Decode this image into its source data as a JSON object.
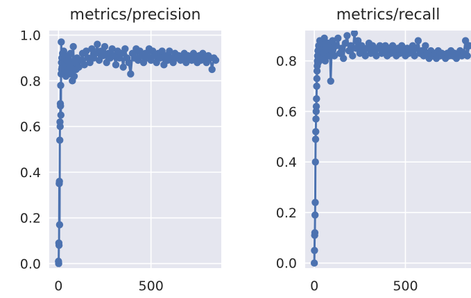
{
  "figure": {
    "background": "#ffffff",
    "plot_background": "#e5e6ef",
    "grid_color": "#ffffff",
    "series_color": "#4c72b0",
    "text_color": "#262626"
  },
  "chart_data": [
    {
      "type": "line",
      "title": "metrics/precision",
      "xlabel": "",
      "ylabel": "",
      "xlim": [
        -50,
        880
      ],
      "ylim": [
        -0.02,
        1.02
      ],
      "xticks": [
        0,
        500
      ],
      "xtick_labels": [
        "0",
        "500"
      ],
      "yticks": [
        0.0,
        0.2,
        0.4,
        0.6,
        0.8,
        1.0
      ],
      "ytick_labels": [
        "0.0",
        "0.2",
        "0.4",
        "0.6",
        "0.8",
        "1.0"
      ],
      "grid": true,
      "markers": true,
      "series": [
        {
          "x": [
            0,
            1,
            2,
            3,
            4,
            5,
            6,
            7,
            8,
            9,
            10,
            11,
            12,
            13,
            14,
            15,
            16,
            17,
            18,
            19,
            20,
            22,
            24,
            26,
            28,
            30,
            35,
            40,
            45,
            50,
            55,
            60,
            65,
            70,
            75,
            80,
            85,
            90,
            95,
            100,
            110,
            120,
            130,
            140,
            150,
            160,
            170,
            180,
            190,
            200,
            210,
            220,
            230,
            240,
            250,
            260,
            270,
            280,
            290,
            300,
            310,
            320,
            330,
            340,
            350,
            360,
            370,
            380,
            390,
            400,
            410,
            420,
            430,
            440,
            450,
            460,
            470,
            480,
            490,
            500,
            510,
            520,
            530,
            540,
            550,
            560,
            570,
            580,
            590,
            600,
            610,
            620,
            630,
            640,
            650,
            660,
            670,
            680,
            690,
            700,
            710,
            720,
            730,
            740,
            750,
            760,
            770,
            780,
            790,
            800,
            810,
            820,
            830,
            840,
            850
          ],
          "y": [
            0.01,
            0.0,
            0.09,
            0.08,
            0.35,
            0.36,
            0.17,
            0.54,
            0.62,
            0.6,
            0.7,
            0.69,
            0.78,
            0.65,
            0.83,
            0.97,
            0.88,
            0.85,
            0.9,
            0.86,
            0.84,
            0.92,
            0.88,
            0.87,
            0.93,
            0.85,
            0.9,
            0.82,
            0.89,
            0.84,
            0.91,
            0.83,
            0.92,
            0.86,
            0.8,
            0.95,
            0.82,
            0.88,
            0.85,
            0.9,
            0.86,
            0.89,
            0.92,
            0.87,
            0.93,
            0.9,
            0.88,
            0.94,
            0.9,
            0.92,
            0.96,
            0.89,
            0.93,
            0.91,
            0.95,
            0.88,
            0.92,
            0.9,
            0.94,
            0.91,
            0.87,
            0.93,
            0.9,
            0.92,
            0.86,
            0.94,
            0.9,
            0.88,
            0.83,
            0.92,
            0.9,
            0.94,
            0.89,
            0.93,
            0.91,
            0.88,
            0.92,
            0.9,
            0.94,
            0.89,
            0.93,
            0.91,
            0.88,
            0.92,
            0.9,
            0.93,
            0.87,
            0.91,
            0.89,
            0.93,
            0.9,
            0.88,
            0.92,
            0.9,
            0.91,
            0.89,
            0.9,
            0.92,
            0.88,
            0.91,
            0.9,
            0.89,
            0.92,
            0.9,
            0.88,
            0.91,
            0.89,
            0.92,
            0.9,
            0.88,
            0.91,
            0.9,
            0.85,
            0.9,
            0.89
          ]
        }
      ]
    },
    {
      "type": "line",
      "title": "metrics/recall",
      "xlabel": "",
      "ylabel": "",
      "xlim": [
        -50,
        860
      ],
      "ylim": [
        -0.02,
        0.92
      ],
      "xticks": [
        0,
        500
      ],
      "xtick_labels": [
        "0",
        "500"
      ],
      "yticks": [
        0.0,
        0.2,
        0.4,
        0.6,
        0.8
      ],
      "ytick_labels": [
        "0.0",
        "0.2",
        "0.4",
        "0.6",
        "0.8"
      ],
      "grid": true,
      "markers": true,
      "series": [
        {
          "x": [
            0,
            1,
            2,
            3,
            4,
            5,
            6,
            7,
            8,
            9,
            10,
            11,
            12,
            13,
            14,
            15,
            16,
            17,
            18,
            19,
            20,
            22,
            24,
            26,
            28,
            30,
            35,
            40,
            45,
            50,
            55,
            60,
            65,
            70,
            75,
            80,
            85,
            90,
            95,
            100,
            110,
            120,
            130,
            140,
            150,
            160,
            170,
            180,
            190,
            200,
            210,
            220,
            230,
            240,
            250,
            260,
            270,
            280,
            290,
            300,
            310,
            320,
            330,
            340,
            350,
            360,
            370,
            380,
            390,
            400,
            410,
            420,
            430,
            440,
            450,
            460,
            470,
            480,
            490,
            500,
            510,
            520,
            530,
            540,
            550,
            560,
            570,
            580,
            590,
            600,
            610,
            620,
            630,
            640,
            650,
            660,
            670,
            680,
            690,
            700,
            710,
            720,
            730,
            740,
            750,
            760,
            770,
            780,
            790,
            800,
            810,
            820,
            830,
            840,
            850
          ],
          "y": [
            0.0,
            0.05,
            0.11,
            0.12,
            0.19,
            0.24,
            0.4,
            0.49,
            0.52,
            0.57,
            0.6,
            0.62,
            0.65,
            0.7,
            0.73,
            0.76,
            0.78,
            0.8,
            0.82,
            0.79,
            0.84,
            0.81,
            0.86,
            0.83,
            0.8,
            0.88,
            0.84,
            0.81,
            0.87,
            0.83,
            0.89,
            0.8,
            0.85,
            0.83,
            0.87,
            0.82,
            0.86,
            0.72,
            0.84,
            0.88,
            0.82,
            0.86,
            0.89,
            0.83,
            0.85,
            0.81,
            0.87,
            0.9,
            0.84,
            0.86,
            0.82,
            0.91,
            0.85,
            0.88,
            0.83,
            0.86,
            0.84,
            0.82,
            0.85,
            0.87,
            0.83,
            0.86,
            0.84,
            0.82,
            0.85,
            0.86,
            0.83,
            0.84,
            0.86,
            0.82,
            0.85,
            0.83,
            0.86,
            0.84,
            0.82,
            0.85,
            0.83,
            0.86,
            0.84,
            0.82,
            0.85,
            0.83,
            0.84,
            0.86,
            0.82,
            0.85,
            0.88,
            0.83,
            0.84,
            0.82,
            0.86,
            0.83,
            0.81,
            0.84,
            0.82,
            0.83,
            0.81,
            0.84,
            0.82,
            0.83,
            0.82,
            0.81,
            0.83,
            0.82,
            0.84,
            0.82,
            0.83,
            0.81,
            0.82,
            0.84,
            0.82,
            0.83,
            0.88,
            0.82,
            0.86
          ]
        }
      ]
    }
  ]
}
